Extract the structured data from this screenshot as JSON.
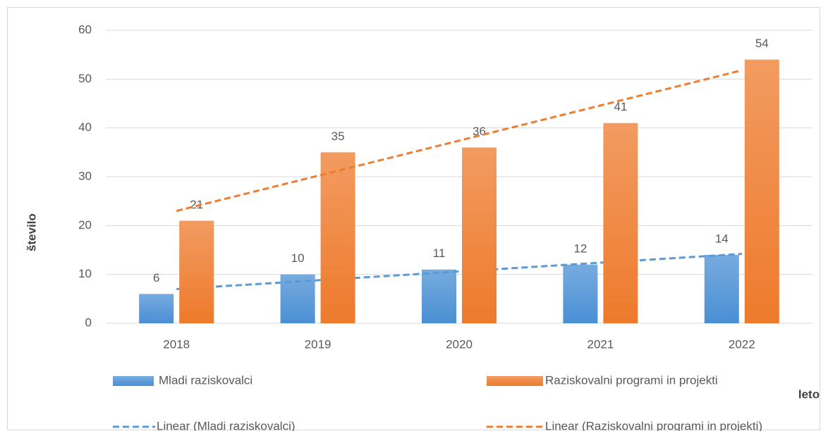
{
  "chart_data": {
    "type": "bar",
    "x_label": "leto",
    "y_label": "število",
    "categories": [
      "2018",
      "2019",
      "2020",
      "2021",
      "2022"
    ],
    "series": [
      {
        "name": "Mladi raziskovalci",
        "color": "#4a8fd4",
        "values": [
          6,
          10,
          11,
          12,
          14
        ],
        "trendline": {
          "name": "Linear (Mladi raziskovalci)",
          "type": "linear",
          "color": "#5b9bd5",
          "dashed": true
        }
      },
      {
        "name": "Raziskovalni programi in projekti",
        "color": "#ee7a2c",
        "values": [
          21,
          35,
          36,
          41,
          54
        ],
        "trendline": {
          "name": "Linear (Raziskovalni programi in projekti)",
          "type": "linear",
          "color": "#ed7d31",
          "dashed": true
        }
      }
    ],
    "ylim": [
      0,
      60
    ],
    "yticks": [
      0,
      10,
      20,
      30,
      40,
      50,
      60
    ],
    "grid": true,
    "legend": "bottom"
  }
}
